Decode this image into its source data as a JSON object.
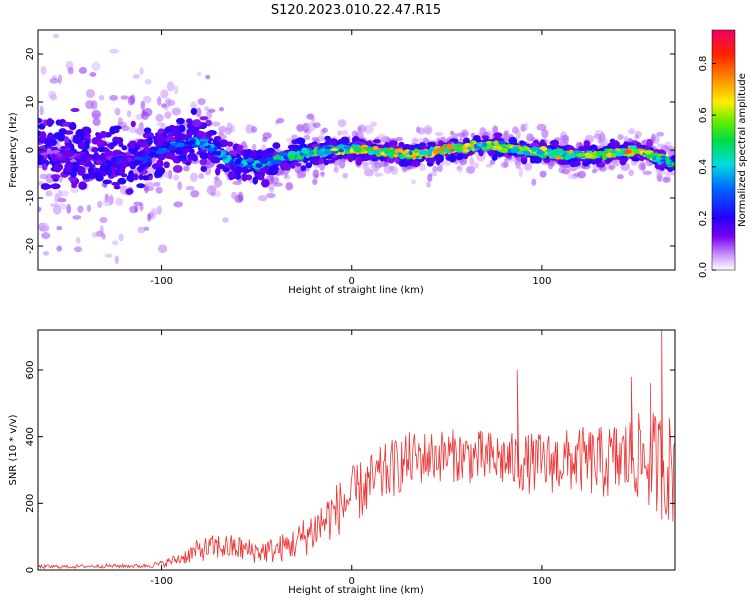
{
  "title": "S120.2023.010.22.47.R15",
  "chart_data": [
    {
      "type": "heatmap",
      "xlabel": "Height of straight line (km)",
      "ylabel": "Frequency (Hz)",
      "xlim": [
        -165,
        170
      ],
      "ylim": [
        -25,
        25
      ],
      "xticks": [
        -100,
        0,
        100
      ],
      "yticks": [
        -20,
        -10,
        0,
        10,
        20
      ],
      "colorbar": {
        "label": "Normalized spectral amplitude",
        "range": [
          0.0,
          0.93
        ],
        "ticks": [
          0.0,
          0.2,
          0.4,
          0.6,
          0.8
        ],
        "colormap": "rainbow"
      },
      "ridge": {
        "x": [
          -165,
          -150,
          -130,
          -110,
          -95,
          -80,
          -65,
          -50,
          -30,
          -10,
          10,
          30,
          50,
          70,
          90,
          110,
          130,
          150,
          170
        ],
        "freq": [
          0,
          -1,
          -2,
          -2,
          1,
          2,
          -2,
          -3,
          -1,
          0,
          0,
          -1,
          0,
          1,
          0,
          -1,
          -1,
          0,
          -3
        ],
        "peak_amplitude": [
          0.15,
          0.2,
          0.25,
          0.3,
          0.4,
          0.45,
          0.45,
          0.5,
          0.55,
          0.65,
          0.85,
          0.75,
          0.8,
          0.7,
          0.75,
          0.75,
          0.7,
          0.85,
          0.5
        ]
      }
    },
    {
      "type": "line",
      "xlabel": "Height of straight line (km)",
      "ylabel": "SNR (10 * v/v)",
      "xlim": [
        -165,
        170
      ],
      "ylim": [
        0,
        720
      ],
      "xticks": [
        -100,
        0,
        100
      ],
      "yticks": [
        0,
        200,
        400,
        600
      ],
      "color": "#ee3333",
      "series": [
        {
          "x": [
            -165,
            -150,
            -130,
            -110,
            -100,
            -90,
            -80,
            -70,
            -60,
            -50,
            -40,
            -30,
            -20,
            -10,
            0,
            10,
            20,
            30,
            40,
            50,
            60,
            70,
            80,
            90,
            100,
            110,
            120,
            130,
            140,
            150,
            160,
            170
          ],
          "mean": [
            10,
            10,
            12,
            12,
            18,
            35,
            60,
            70,
            65,
            55,
            60,
            80,
            120,
            170,
            220,
            260,
            300,
            330,
            340,
            345,
            340,
            335,
            330,
            320,
            320,
            325,
            330,
            320,
            330,
            340,
            320,
            300
          ],
          "spread": [
            6,
            5,
            6,
            6,
            10,
            20,
            35,
            40,
            40,
            35,
            40,
            50,
            70,
            80,
            90,
            90,
            90,
            85,
            80,
            80,
            80,
            85,
            85,
            90,
            95,
            95,
            100,
            110,
            120,
            130,
            160,
            170
          ]
        }
      ],
      "peaks": [
        {
          "x": 163,
          "y": 720
        },
        {
          "x": 147,
          "y": 580
        },
        {
          "x": 87,
          "y": 600
        },
        {
          "x": 157,
          "y": 560
        }
      ]
    }
  ]
}
